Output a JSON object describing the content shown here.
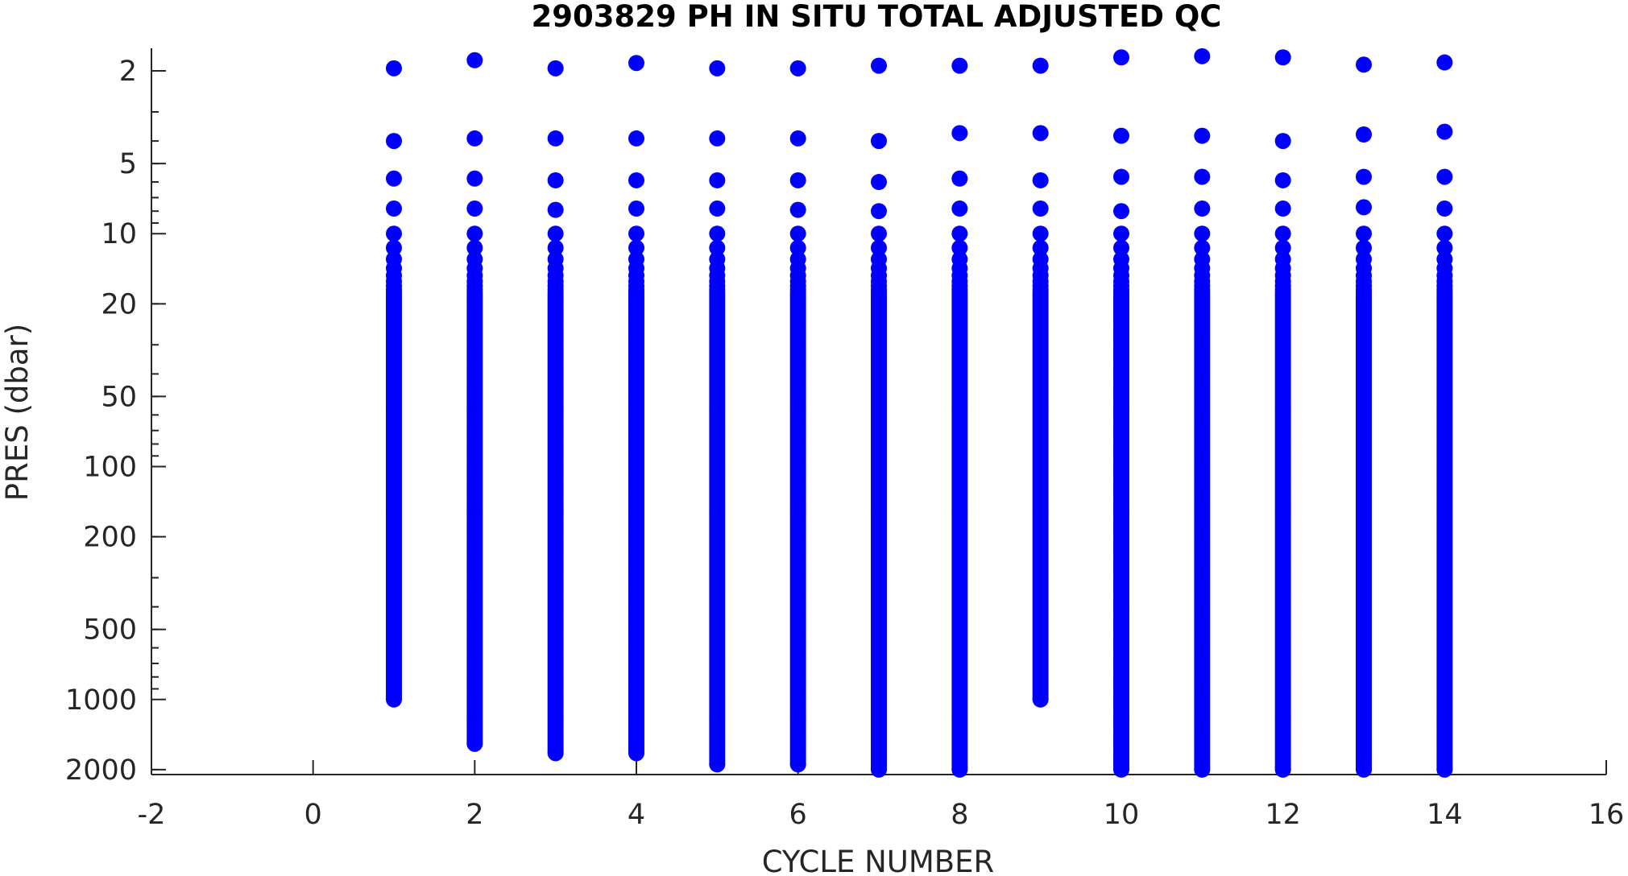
{
  "chart_data": {
    "type": "scatter",
    "title": "2903829  PH IN SITU TOTAL ADJUSTED QC",
    "xlabel": "CYCLE NUMBER",
    "ylabel": "PRES (dbar)",
    "xlim": [
      -2,
      16
    ],
    "ylim": [
      1.6,
      2100
    ],
    "y_scale": "log",
    "y_reversed": true,
    "grid": false,
    "legend": "none",
    "marker_color": "#0000ff",
    "x_ticks": [
      "-2",
      "0",
      "2",
      "4",
      "6",
      "8",
      "10",
      "12",
      "14",
      "16"
    ],
    "y_ticks": [
      "2",
      "5",
      "10",
      "20",
      "50",
      "100",
      "200",
      "500",
      "1000",
      "2000"
    ],
    "series": [
      {
        "values": [
          {
            "x": 1,
            "top_pressures": [
              1.95,
              4.0,
              5.8,
              7.8
            ],
            "max_pressure": 1000
          },
          {
            "x": 2,
            "top_pressures": [
              1.8,
              3.9,
              5.8,
              7.8
            ],
            "max_pressure": 1550
          },
          {
            "x": 3,
            "top_pressures": [
              1.95,
              3.9,
              5.9,
              7.9
            ],
            "max_pressure": 1700
          },
          {
            "x": 4,
            "top_pressures": [
              1.85,
              3.9,
              5.9,
              7.8
            ],
            "max_pressure": 1700
          },
          {
            "x": 5,
            "top_pressures": [
              1.95,
              3.9,
              5.9,
              7.8
            ],
            "max_pressure": 1900
          },
          {
            "x": 6,
            "top_pressures": [
              1.95,
              3.9,
              5.9,
              7.9
            ],
            "max_pressure": 1900
          },
          {
            "x": 7,
            "top_pressures": [
              1.9,
              4.0,
              6.0,
              8.0
            ],
            "max_pressure": 2000
          },
          {
            "x": 8,
            "top_pressures": [
              1.9,
              3.7,
              5.8,
              7.8
            ],
            "max_pressure": 2000
          },
          {
            "x": 9,
            "top_pressures": [
              1.9,
              3.7,
              5.9,
              7.8
            ],
            "max_pressure": 1000
          },
          {
            "x": 10,
            "top_pressures": [
              1.75,
              3.8,
              5.7,
              8.0
            ],
            "max_pressure": 2000
          },
          {
            "x": 11,
            "top_pressures": [
              1.73,
              3.8,
              5.7,
              7.8
            ],
            "max_pressure": 2000
          },
          {
            "x": 12,
            "top_pressures": [
              1.75,
              4.0,
              5.9,
              7.8
            ],
            "max_pressure": 2000
          },
          {
            "x": 13,
            "top_pressures": [
              1.88,
              3.75,
              5.7,
              7.7
            ],
            "max_pressure": 2000
          },
          {
            "x": 14,
            "top_pressures": [
              1.84,
              3.65,
              5.7,
              7.8
            ],
            "max_pressure": 2000
          }
        ]
      }
    ]
  }
}
